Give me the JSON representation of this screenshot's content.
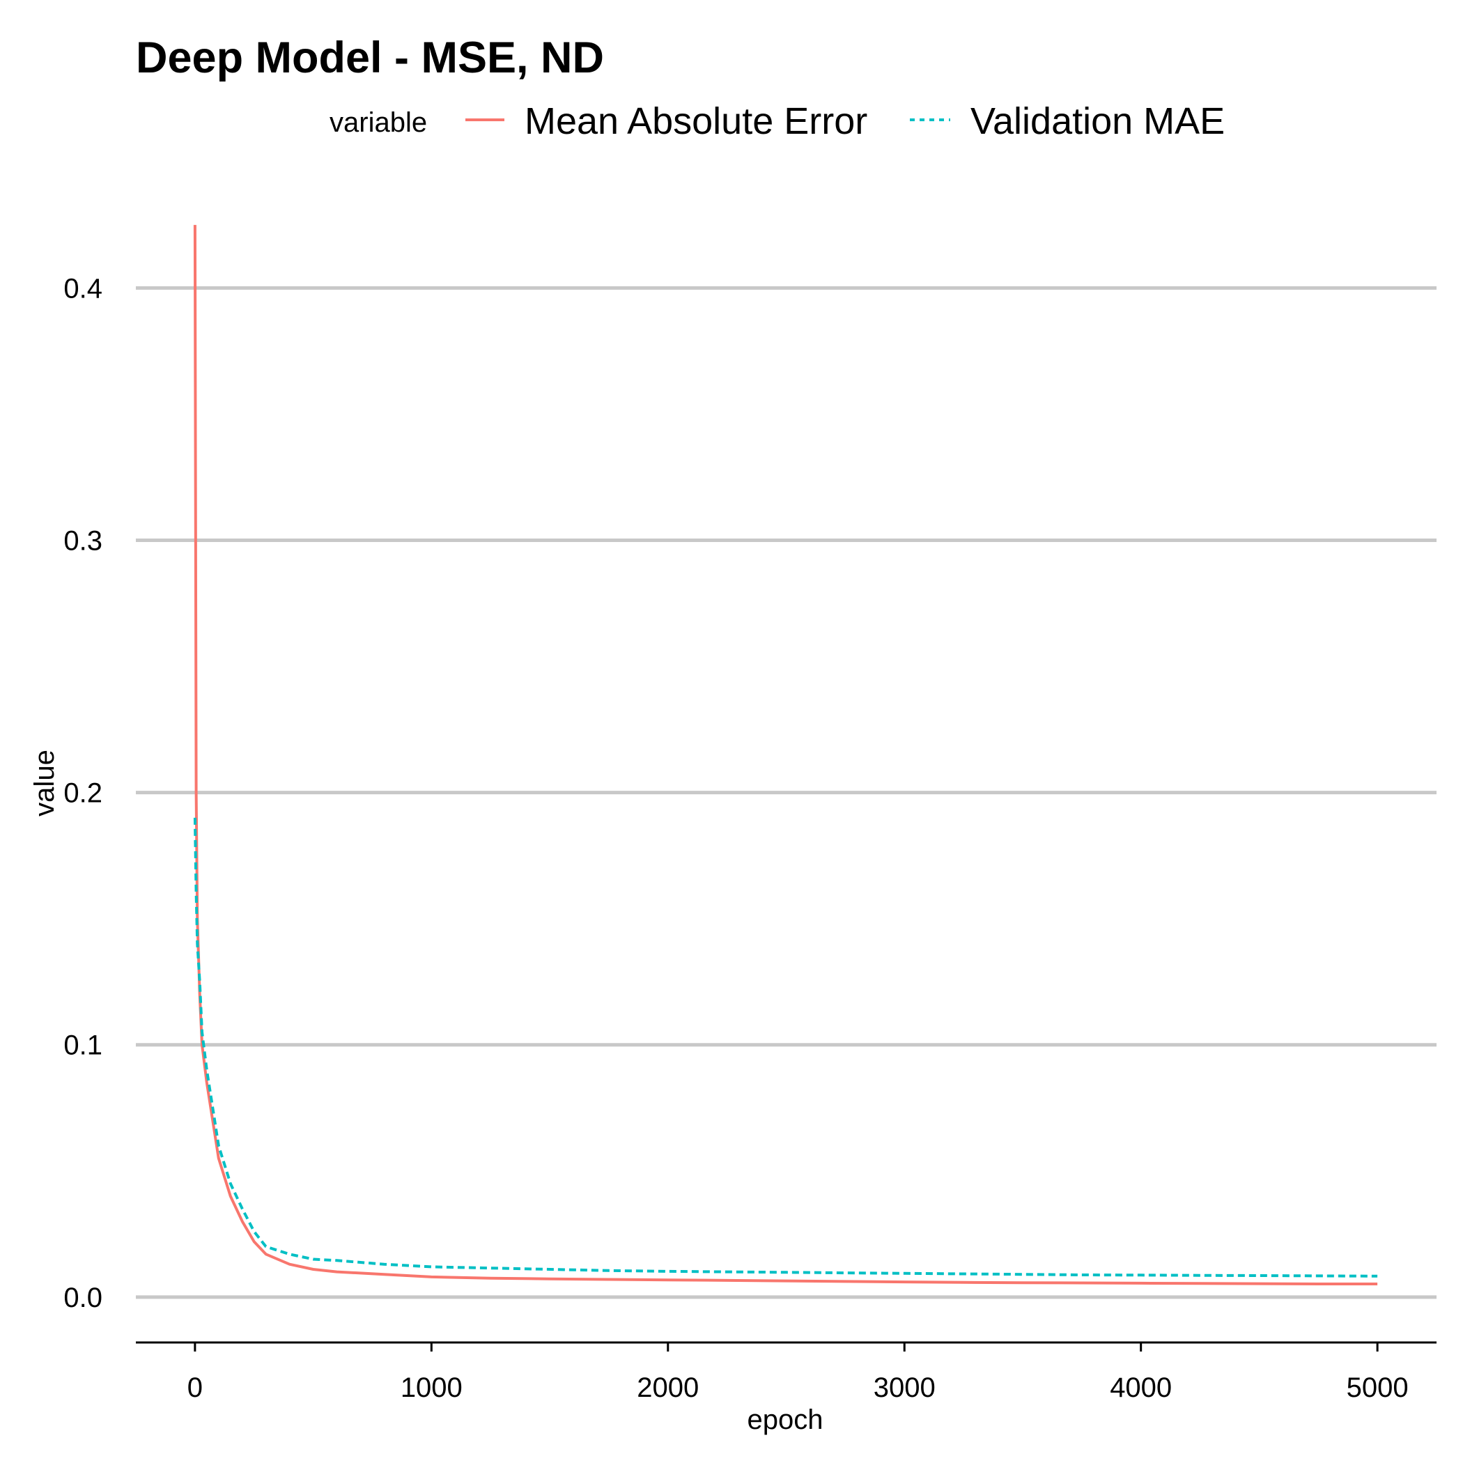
{
  "chart_data": {
    "type": "line",
    "title": "Deep Model - MSE, ND",
    "xlabel": "epoch",
    "ylabel": "value",
    "xlim": [
      -250,
      5250
    ],
    "ylim": [
      -0.018,
      0.428
    ],
    "x_ticks": [
      0,
      1000,
      2000,
      3000,
      4000,
      5000
    ],
    "x_tick_labels": [
      "0",
      "1000",
      "2000",
      "3000",
      "4000",
      "5000"
    ],
    "y_ticks": [
      0.0,
      0.1,
      0.2,
      0.3,
      0.4
    ],
    "y_tick_labels": [
      "0.0",
      "0.1",
      "0.2",
      "0.3",
      "0.4"
    ],
    "grid": "horizontal major only",
    "legend": {
      "title": "variable",
      "position": "top"
    },
    "series": [
      {
        "name": "Mean Absolute Error",
        "color": "#F8766D",
        "style": "solid",
        "x": [
          0,
          5,
          10,
          20,
          30,
          50,
          75,
          100,
          150,
          200,
          250,
          300,
          400,
          500,
          600,
          800,
          1000,
          1250,
          1500,
          1750,
          2000,
          2250,
          2500,
          2750,
          3000,
          3250,
          3500,
          3750,
          4000,
          4250,
          4500,
          4750,
          5000
        ],
        "values": [
          0.425,
          0.2,
          0.15,
          0.12,
          0.1,
          0.085,
          0.07,
          0.055,
          0.04,
          0.03,
          0.022,
          0.017,
          0.013,
          0.011,
          0.01,
          0.009,
          0.008,
          0.0075,
          0.0072,
          0.007,
          0.0068,
          0.0066,
          0.0064,
          0.0062,
          0.006,
          0.0058,
          0.0057,
          0.0056,
          0.0055,
          0.0054,
          0.0053,
          0.0052,
          0.0052
        ]
      },
      {
        "name": "Validation MAE",
        "color": "#00BFC4",
        "style": "dashed",
        "x": [
          0,
          5,
          10,
          20,
          30,
          50,
          75,
          100,
          150,
          200,
          250,
          300,
          400,
          500,
          600,
          800,
          1000,
          1250,
          1500,
          1750,
          2000,
          2250,
          2500,
          2750,
          3000,
          3250,
          3500,
          3750,
          4000,
          4250,
          4500,
          4750,
          5000
        ],
        "values": [
          0.19,
          0.16,
          0.14,
          0.125,
          0.105,
          0.09,
          0.075,
          0.06,
          0.045,
          0.035,
          0.026,
          0.02,
          0.017,
          0.015,
          0.0145,
          0.013,
          0.012,
          0.0115,
          0.011,
          0.0105,
          0.0102,
          0.01,
          0.0098,
          0.0096,
          0.0094,
          0.0092,
          0.009,
          0.0088,
          0.0087,
          0.0086,
          0.0085,
          0.0084,
          0.0083
        ]
      }
    ]
  }
}
